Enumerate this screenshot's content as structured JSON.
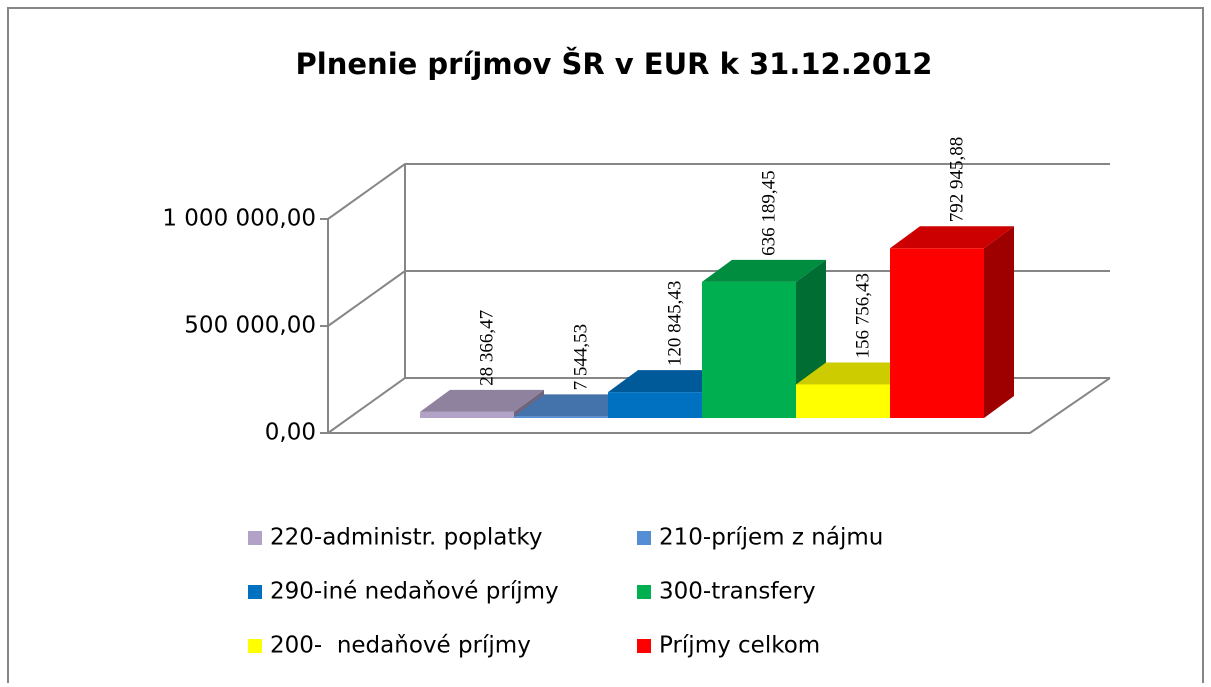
{
  "chart_data": {
    "type": "bar3d",
    "title": "Plnenie príjmov ŠR v EUR k 31.12.2012",
    "series": [
      {
        "name": "220-administr. poplatky",
        "color": "#b3a2c7",
        "values": [
          28366.47
        ],
        "value_labels": [
          "28 366,47"
        ]
      },
      {
        "name": "210-príjem z nájmu",
        "color": "#558ed5",
        "values": [
          7544.53
        ],
        "value_labels": [
          "7 544,53"
        ]
      },
      {
        "name": "290-iné nedaňové príjmy",
        "color": "#0070c0",
        "values": [
          120845.43
        ],
        "value_labels": [
          "120 845,43"
        ]
      },
      {
        "name": "300-transfery",
        "color": "#00b050",
        "values": [
          636189.45
        ],
        "value_labels": [
          "636 189,45"
        ]
      },
      {
        "name": "200-  nedaňové príjmy",
        "color": "#ffff00",
        "values": [
          156756.43
        ],
        "value_labels": [
          "156 756,43"
        ]
      },
      {
        "name": "Príjmy celkom",
        "color": "#ff0000",
        "values": [
          792945.88
        ],
        "value_labels": [
          "792 945,88"
        ]
      }
    ],
    "ylim": [
      0,
      1000000
    ],
    "yticks": [
      {
        "value": 0,
        "label": "0,00"
      },
      {
        "value": 500000,
        "label": "500 000,00"
      },
      {
        "value": 1000000,
        "label": "1 000 000,00"
      }
    ],
    "grid": true
  }
}
